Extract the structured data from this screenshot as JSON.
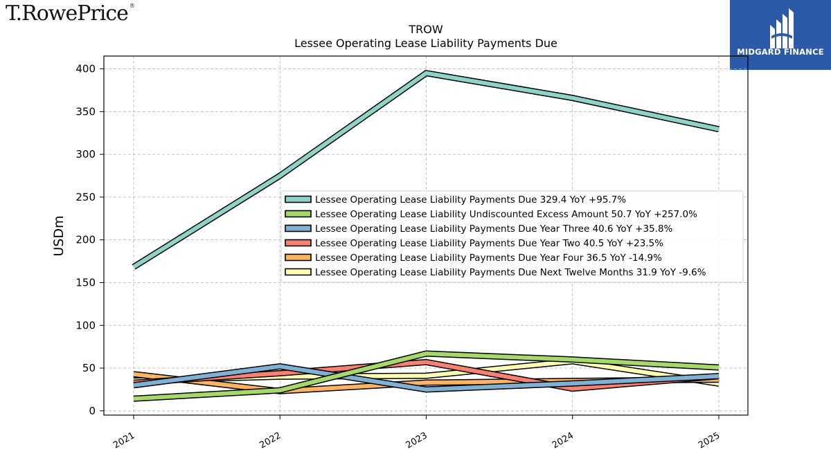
{
  "header": {
    "company_logo_text": "T.RowePrice",
    "company_logo_mark": "®",
    "brand_name": "MIDGARD FINANCE",
    "brand_icon": "midgard-logo-icon",
    "brand_color": "#2c5aa8"
  },
  "chart_data": {
    "type": "line",
    "title": "TROW",
    "subtitle": "Lessee Operating Lease Liability Payments Due",
    "ylabel": "USDm",
    "xlabel": "",
    "categories": [
      "2021",
      "2022",
      "2023",
      "2024",
      "2025"
    ],
    "ylim": [
      -5,
      415
    ],
    "yticks": [
      0,
      50,
      100,
      150,
      200,
      250,
      300,
      350,
      400
    ],
    "grid": true,
    "legend_position": "right-center",
    "series": [
      {
        "name": "Lessee Operating Lease Liability Payments Due",
        "legend_label": "Lessee Operating Lease Liability Payments Due  329.4 YoY +95.7%",
        "color": "#8dd3c7",
        "values": [
          168.3,
          275.0,
          395.0,
          366.0,
          329.4
        ]
      },
      {
        "name": "Lessee Operating Lease Liability Undiscounted Excess Amount",
        "legend_label": "Lessee Operating Lease Liability Undiscounted Excess Amount  50.7 YoY +257.0%",
        "color": "#a6d96a",
        "values": [
          14.2,
          24.0,
          67.0,
          60.0,
          50.7
        ]
      },
      {
        "name": "Lessee Operating Lease Liability Payments Due Year Three",
        "legend_label": "Lessee Operating Lease Liability Payments Due Year Three  40.6 YoY +35.8%",
        "color": "#80b1d3",
        "values": [
          29.9,
          52.0,
          25.0,
          32.0,
          40.6
        ]
      },
      {
        "name": "Lessee Operating Lease Liability Payments Due Year Two",
        "legend_label": "Lessee Operating Lease Liability Payments Due Year Two  40.5 YoY +23.5%",
        "color": "#fb8072",
        "values": [
          32.8,
          44.0,
          57.0,
          26.0,
          40.5
        ]
      },
      {
        "name": "Lessee Operating Lease Liability Payments Due Year Four",
        "legend_label": "Lessee Operating Lease Liability Payments Due Year Four  36.5 YoY -14.9%",
        "color": "#fdb462",
        "values": [
          42.9,
          23.0,
          33.0,
          35.0,
          36.5
        ]
      },
      {
        "name": "Lessee Operating Lease Liability Payments Due Next Twelve Months",
        "legend_label": "Lessee Operating Lease Liability Payments Due Next Twelve Months  31.9 YoY -9.6%",
        "color": "#ffffb3",
        "values": [
          35.3,
          40.0,
          41.0,
          58.0,
          31.9
        ]
      }
    ]
  }
}
